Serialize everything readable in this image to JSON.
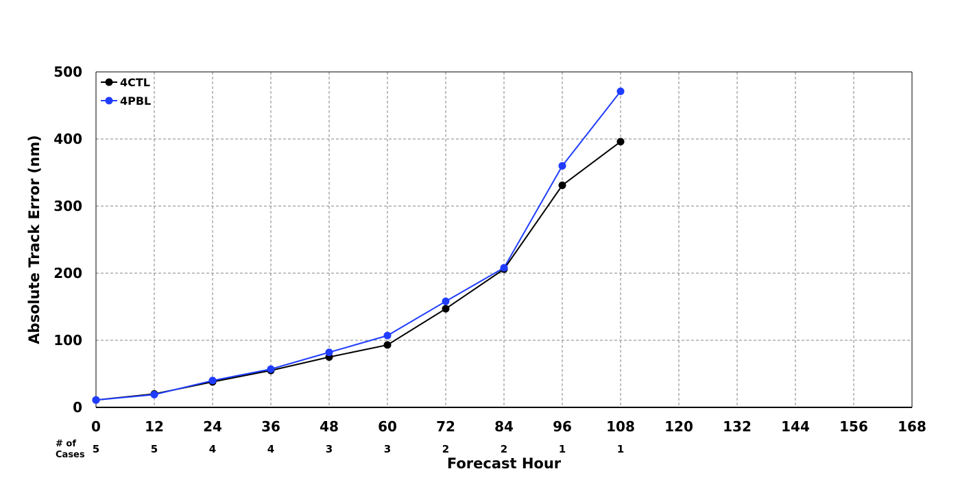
{
  "chart_data": {
    "type": "line",
    "title": "",
    "xlabel": "Forecast Hour",
    "ylabel": "Absolute Track Error (nm)",
    "xlim": [
      0,
      168
    ],
    "ylim": [
      0,
      500
    ],
    "x_ticks": [
      0,
      12,
      24,
      36,
      48,
      60,
      72,
      84,
      96,
      108,
      120,
      132,
      144,
      156,
      168
    ],
    "y_ticks": [
      0,
      100,
      200,
      300,
      400,
      500
    ],
    "grid": true,
    "legend_position": "top-left",
    "x": [
      0,
      12,
      24,
      36,
      48,
      60,
      72,
      84,
      96,
      108
    ],
    "series": [
      {
        "name": "4CTL",
        "color": "#000000",
        "values": [
          11,
          20,
          38,
          55,
          75,
          93,
          147,
          206,
          331,
          396
        ]
      },
      {
        "name": "4PBL",
        "color": "#1f3cff",
        "values": [
          11,
          19,
          40,
          57,
          82,
          107,
          158,
          208,
          360,
          471
        ]
      }
    ],
    "cases": {
      "label_line1": "# of",
      "label_line2": "Cases",
      "counts": [
        5,
        5,
        4,
        4,
        3,
        3,
        2,
        2,
        1,
        1
      ]
    }
  }
}
